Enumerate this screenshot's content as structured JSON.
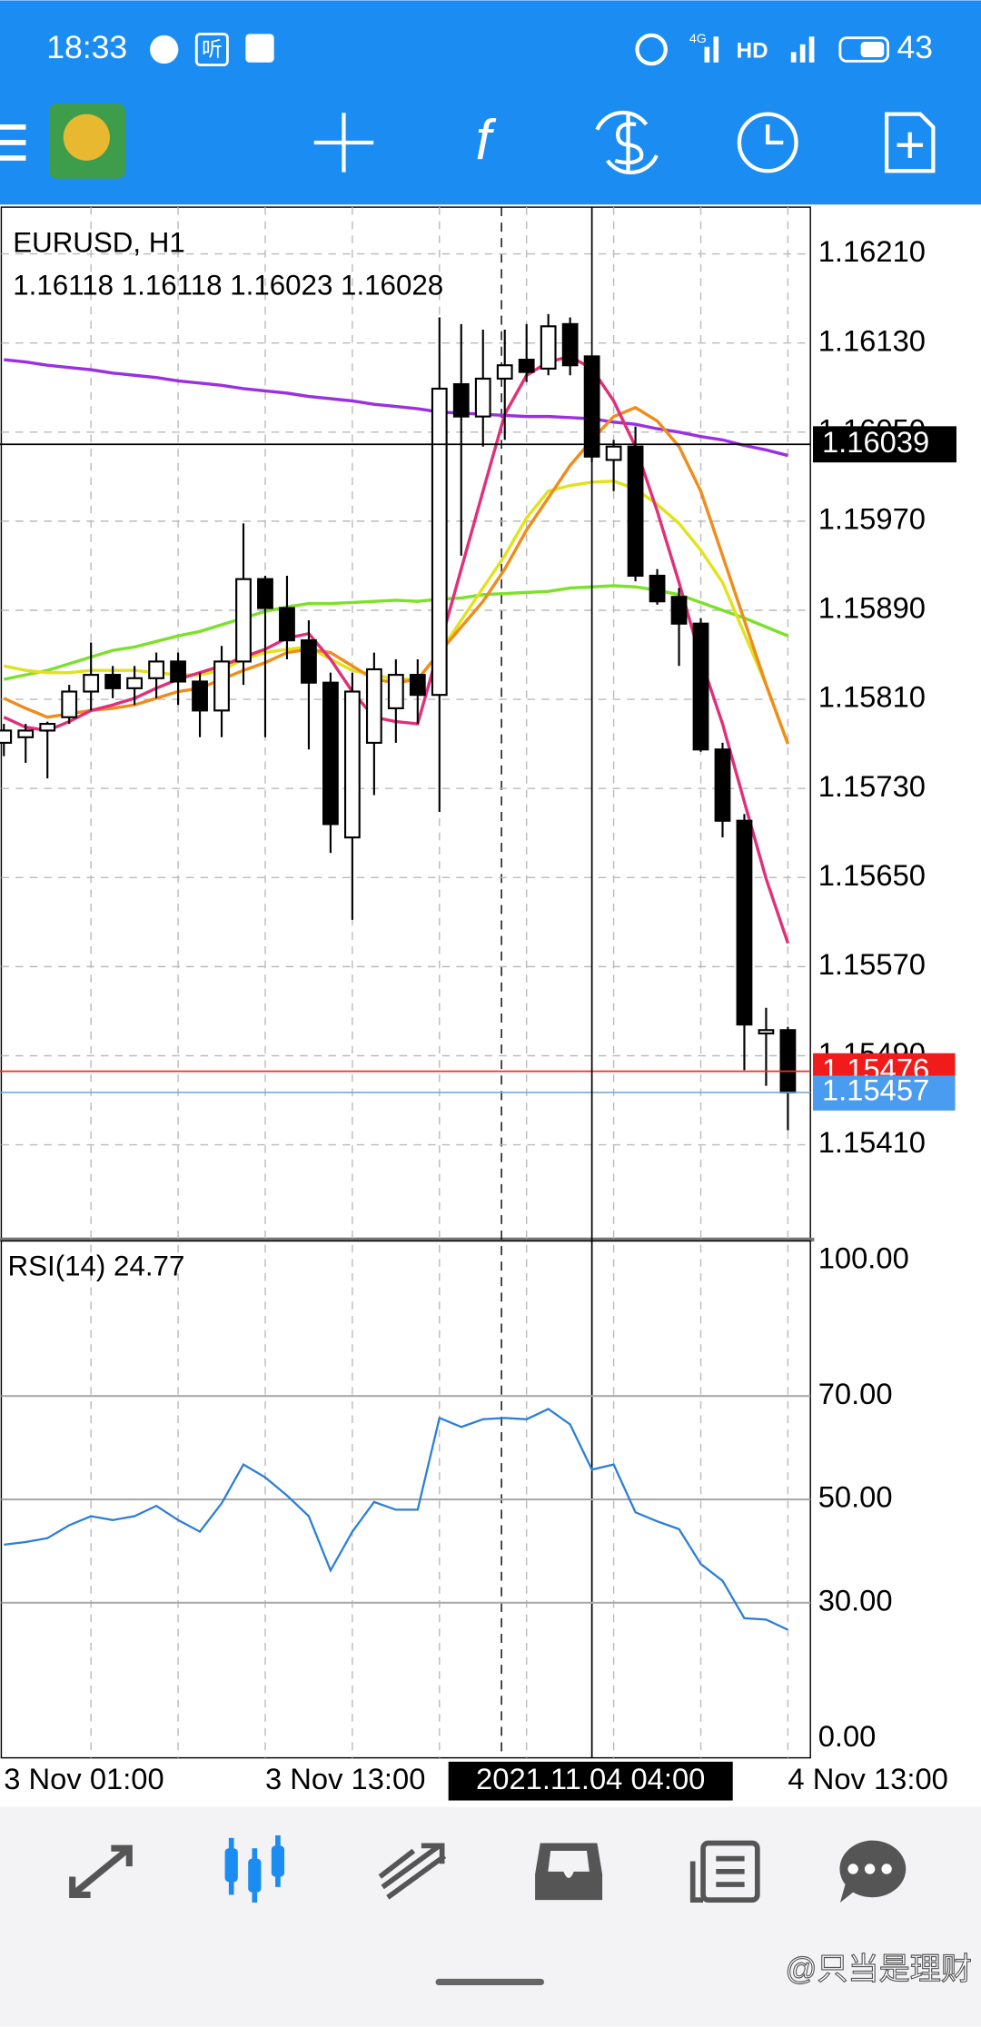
{
  "status_bar": {
    "time": "18:33",
    "listen_icon": "听",
    "network": "4G",
    "hd": "HD",
    "battery": "43"
  },
  "toolbar": {
    "indicators_icon": "f"
  },
  "watermark": "@只当是理财",
  "chart_data": [
    {
      "type": "candlestick",
      "title": "EURUSD, H1",
      "subtitle": "1.16118 1.16118 1.16023 1.16028",
      "categories": [
        "3 Nov 01:00",
        null,
        null,
        null,
        null,
        null,
        null,
        null,
        null,
        null,
        null,
        null,
        "3 Nov 13:00",
        null,
        null,
        null,
        null,
        null,
        null,
        null,
        null,
        null,
        null,
        null,
        null,
        null,
        null,
        null,
        null,
        null,
        null,
        null,
        null,
        null,
        null,
        null,
        "4 Nov 13:00"
      ],
      "open": [
        1.15771,
        1.15776,
        1.15782,
        1.15794,
        1.15817,
        1.15832,
        1.1582,
        1.15829,
        1.15844,
        1.15826,
        1.158,
        1.15844,
        1.15918,
        1.15892,
        1.15863,
        1.15825,
        1.15686,
        1.15771,
        1.15802,
        1.15832,
        1.15814,
        1.16093,
        1.16064,
        1.16098,
        1.16115,
        1.16107,
        1.16147,
        1.16118,
        1.16025,
        1.16037,
        1.15921,
        1.15902,
        1.15878,
        1.15765,
        1.15701,
        1.1551,
        1.15513
      ],
      "high": [
        1.15788,
        1.15788,
        1.1579,
        1.15823,
        1.15861,
        1.1584,
        1.1584,
        1.15852,
        1.15852,
        1.15834,
        1.15858,
        1.15968,
        1.15921,
        1.15921,
        1.15881,
        1.15834,
        1.15834,
        1.15852,
        1.15846,
        1.15846,
        1.16153,
        1.16147,
        1.16142,
        1.16142,
        1.16147,
        1.16156,
        1.16153,
        1.16118,
        1.16043,
        1.16055,
        1.15927,
        1.1591,
        1.15883,
        1.15771,
        1.15707,
        1.15533,
        1.15516
      ],
      "low": [
        1.15759,
        1.15753,
        1.15739,
        1.15788,
        1.158,
        1.15811,
        1.15805,
        1.15811,
        1.15805,
        1.15776,
        1.15776,
        1.15823,
        1.15776,
        1.15846,
        1.15765,
        1.15672,
        1.15612,
        1.15724,
        1.15771,
        1.15788,
        1.15709,
        1.15939,
        1.16037,
        1.16043,
        1.16095,
        1.16101,
        1.16101,
        1.16023,
        1.15997,
        1.15916,
        1.15895,
        1.1584,
        1.15763,
        1.15686,
        1.15477,
        1.15463,
        1.15423
      ],
      "close": [
        1.15782,
        1.15782,
        1.15788,
        1.15817,
        1.15832,
        1.1582,
        1.15829,
        1.15844,
        1.15826,
        1.158,
        1.15844,
        1.15918,
        1.15892,
        1.15863,
        1.15825,
        1.15698,
        1.15817,
        1.15837,
        1.15832,
        1.15814,
        1.16089,
        1.16064,
        1.16098,
        1.1611,
        1.16104,
        1.16145,
        1.1611,
        1.16028,
        1.16037,
        1.15921,
        1.15898,
        1.15878,
        1.15765,
        1.15701,
        1.15518,
        1.15513,
        1.15457
      ],
      "series": [
        {
          "color": "#9b30e0",
          "values": [
            1.16115,
            1.16113,
            1.1611,
            1.16108,
            1.16106,
            1.16103,
            1.16101,
            1.16099,
            1.16096,
            1.16094,
            1.16092,
            1.16089,
            1.16087,
            1.16085,
            1.16082,
            1.1608,
            1.16078,
            1.16075,
            1.16073,
            1.16071,
            1.16068,
            1.16067,
            1.16066,
            1.16065,
            1.16064,
            1.16064,
            1.16063,
            1.16062,
            1.16059,
            1.16057,
            1.16053,
            1.1605,
            1.16046,
            1.16043,
            1.16038,
            1.16034,
            1.16029
          ]
        },
        {
          "color": "#7ee02a",
          "values": [
            1.15828,
            1.15832,
            1.15836,
            1.15842,
            1.15848,
            1.15854,
            1.15857,
            1.15862,
            1.15867,
            1.15871,
            1.15877,
            1.15883,
            1.15889,
            1.15893,
            1.15896,
            1.15896,
            1.15897,
            1.15898,
            1.15899,
            1.15898,
            1.159,
            1.15901,
            1.15904,
            1.15905,
            1.15906,
            1.15907,
            1.1591,
            1.15911,
            1.15912,
            1.15911,
            1.15908,
            1.15904,
            1.15897,
            1.1589,
            1.15883,
            1.15875,
            1.15867
          ]
        },
        {
          "color": "#e2e21c",
          "values": [
            1.1584,
            1.15836,
            1.15834,
            1.15834,
            1.15836,
            1.15836,
            1.15836,
            1.15834,
            1.15832,
            1.15832,
            1.15836,
            1.15846,
            1.15852,
            1.15855,
            1.15857,
            1.15846,
            1.15836,
            1.15832,
            1.15828,
            1.15828,
            1.15852,
            1.15881,
            1.1591,
            1.15939,
            1.15973,
            1.15997,
            1.16002,
            1.16005,
            1.16006,
            1.15999,
            1.15985,
            1.15968,
            1.15944,
            1.15915,
            1.15869,
            1.15823,
            1.1577
          ]
        },
        {
          "color": "#f08c1a",
          "values": [
            1.15811,
            1.15802,
            1.15794,
            1.15797,
            1.158,
            1.15802,
            1.15805,
            1.15811,
            1.15817,
            1.1582,
            1.15828,
            1.15836,
            1.15843,
            1.15852,
            1.15855,
            1.15852,
            1.1584,
            1.15828,
            1.15825,
            1.15828,
            1.15852,
            1.15875,
            1.15898,
            1.15927,
            1.15962,
            1.15991,
            1.1602,
            1.16043,
            1.16064,
            1.16072,
            1.1606,
            1.16037,
            1.15997,
            1.15939,
            1.15881,
            1.15823,
            1.1577
          ]
        },
        {
          "color": "#e0307a",
          "values": [
            1.15794,
            1.15785,
            1.15782,
            1.1579,
            1.158,
            1.15805,
            1.15811,
            1.1582,
            1.15828,
            1.15834,
            1.1584,
            1.15848,
            1.15855,
            1.15865,
            1.15869,
            1.15846,
            1.15817,
            1.15794,
            1.1579,
            1.15788,
            1.15857,
            1.15927,
            1.15997,
            1.16066,
            1.16101,
            1.16113,
            1.16118,
            1.16107,
            1.16078,
            1.16037,
            1.15979,
            1.15915,
            1.15846,
            1.15788,
            1.15718,
            1.15649,
            1.15591
          ]
        }
      ],
      "ylim": [
        1.15326,
        1.16252
      ],
      "yticks": [
        {
          "value": 1.1621,
          "label": "1.16210"
        },
        {
          "value": 1.1613,
          "label": "1.16130"
        },
        {
          "value": 1.1605,
          "label": "1.16050"
        },
        {
          "value": 1.1597,
          "label": "1.15970"
        },
        {
          "value": 1.1589,
          "label": "1.15890"
        },
        {
          "value": 1.1581,
          "label": "1.15810"
        },
        {
          "value": 1.1573,
          "label": "1.15730"
        },
        {
          "value": 1.1565,
          "label": "1.15650"
        },
        {
          "value": 1.1557,
          "label": "1.15570"
        },
        {
          "value": 1.1549,
          "label": "1.15490"
        },
        {
          "value": 1.1541,
          "label": "1.15410"
        }
      ],
      "grid": true,
      "ask": 1.15476,
      "bid": 1.15457,
      "crosshair": {
        "price": 1.16039,
        "time_label": "2021.11.04 04:00"
      }
    },
    {
      "type": "line",
      "title": "RSI(14) 24.77",
      "color": "#2b7fd4",
      "values": [
        41.25,
        41.75,
        42.5,
        45,
        46.75,
        46,
        46.75,
        48.75,
        46,
        43.75,
        49.25,
        56.75,
        54.25,
        50.75,
        46.75,
        36.25,
        43.75,
        49.5,
        48,
        48,
        65.75,
        64,
        65.5,
        65.75,
        65.5,
        67.5,
        64.5,
        55.75,
        56.75,
        47.5,
        45.75,
        44.25,
        37.5,
        34.25,
        27,
        26.75,
        24.77
      ],
      "ylim": [
        0,
        100
      ],
      "yticks": [
        {
          "value": 100,
          "label": "100.00"
        },
        {
          "value": 70,
          "label": "70.00"
        },
        {
          "value": 50,
          "label": "50.00"
        },
        {
          "value": 30,
          "label": "30.00"
        },
        {
          "value": 0,
          "label": "0.00"
        }
      ]
    }
  ]
}
